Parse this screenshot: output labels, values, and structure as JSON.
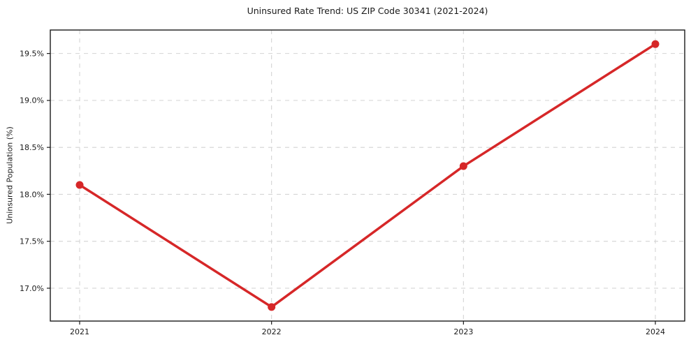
{
  "chart_data": {
    "type": "line",
    "title": "Uninsured Rate Trend: US ZIP Code 30341 (2021-2024)",
    "xlabel": "",
    "ylabel": "Uninsured Population (%)",
    "categories": [
      "2021",
      "2022",
      "2023",
      "2024"
    ],
    "values": [
      18.1,
      16.8,
      18.3,
      19.6
    ],
    "ylim": [
      16.65,
      19.75
    ],
    "yticks": [
      17.0,
      17.5,
      18.0,
      18.5,
      19.0,
      19.5
    ],
    "ytick_suffix": "%",
    "grid": true,
    "grid_style": "dashed",
    "legend": "none",
    "colors": {
      "line": "#d62728",
      "marker": "#d62728",
      "grid": "#d4d4d4",
      "axis": "#1a1a1a",
      "text": "#1a1a1a",
      "background": "#ffffff"
    }
  }
}
